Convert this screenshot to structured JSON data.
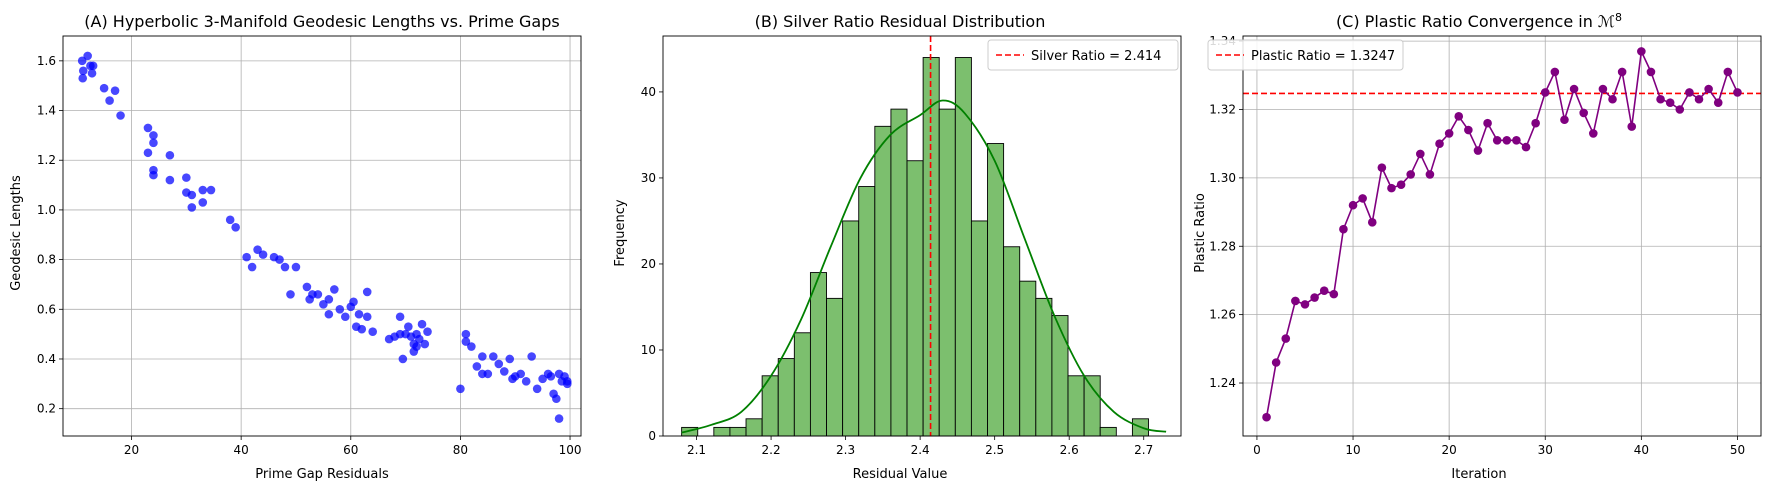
{
  "chart_data": [
    {
      "type": "scatter",
      "title": "(A) Hyperbolic 3-Manifold Geodesic Lengths vs. Prime Gaps",
      "xlabel": "Prime Gap Residuals",
      "ylabel": "Geodesic Lengths",
      "xlim": [
        7.5,
        102
      ],
      "ylim": [
        0.09,
        1.7
      ],
      "xticks": [
        20,
        40,
        60,
        80,
        100
      ],
      "yticks": [
        0.2,
        0.4,
        0.6,
        0.8,
        1.0,
        1.2,
        1.4,
        1.6
      ],
      "grid": true,
      "color": "#0000ff",
      "points": [
        [
          11,
          1.6
        ],
        [
          11.2,
          1.56
        ],
        [
          11.1,
          1.53
        ],
        [
          12,
          1.62
        ],
        [
          12.5,
          1.58
        ],
        [
          12.8,
          1.55
        ],
        [
          13,
          1.58
        ],
        [
          15,
          1.49
        ],
        [
          16,
          1.44
        ],
        [
          17,
          1.48
        ],
        [
          18,
          1.38
        ],
        [
          23,
          1.33
        ],
        [
          23,
          1.23
        ],
        [
          24,
          1.3
        ],
        [
          24,
          1.27
        ],
        [
          24,
          1.16
        ],
        [
          24,
          1.14
        ],
        [
          27,
          1.22
        ],
        [
          27,
          1.12
        ],
        [
          30,
          1.13
        ],
        [
          30,
          1.07
        ],
        [
          31,
          1.06
        ],
        [
          31,
          1.01
        ],
        [
          33,
          1.08
        ],
        [
          33,
          1.03
        ],
        [
          34.5,
          1.08
        ],
        [
          38,
          0.96
        ],
        [
          39,
          0.93
        ],
        [
          41,
          0.81
        ],
        [
          42,
          0.77
        ],
        [
          43,
          0.84
        ],
        [
          44,
          0.82
        ],
        [
          46,
          0.81
        ],
        [
          47,
          0.8
        ],
        [
          48,
          0.77
        ],
        [
          49,
          0.66
        ],
        [
          50,
          0.77
        ],
        [
          52,
          0.69
        ],
        [
          52.5,
          0.64
        ],
        [
          53,
          0.66
        ],
        [
          54,
          0.66
        ],
        [
          55,
          0.62
        ],
        [
          56,
          0.58
        ],
        [
          56,
          0.64
        ],
        [
          57,
          0.68
        ],
        [
          58,
          0.6
        ],
        [
          59,
          0.57
        ],
        [
          60,
          0.61
        ],
        [
          60.5,
          0.63
        ],
        [
          61,
          0.53
        ],
        [
          61.5,
          0.58
        ],
        [
          62,
          0.52
        ],
        [
          63,
          0.67
        ],
        [
          63,
          0.57
        ],
        [
          64,
          0.51
        ],
        [
          67,
          0.48
        ],
        [
          68,
          0.49
        ],
        [
          69,
          0.5
        ],
        [
          69,
          0.57
        ],
        [
          69.5,
          0.4
        ],
        [
          70,
          0.5
        ],
        [
          70.5,
          0.53
        ],
        [
          71,
          0.49
        ],
        [
          71.5,
          0.43
        ],
        [
          71.5,
          0.46
        ],
        [
          72,
          0.5
        ],
        [
          72,
          0.45
        ],
        [
          72.5,
          0.48
        ],
        [
          73,
          0.54
        ],
        [
          73.5,
          0.46
        ],
        [
          74,
          0.51
        ],
        [
          80,
          0.28
        ],
        [
          81,
          0.5
        ],
        [
          81,
          0.47
        ],
        [
          82,
          0.45
        ],
        [
          83,
          0.37
        ],
        [
          84,
          0.34
        ],
        [
          85,
          0.34
        ],
        [
          84,
          0.41
        ],
        [
          86,
          0.41
        ],
        [
          87,
          0.38
        ],
        [
          88,
          0.35
        ],
        [
          89,
          0.4
        ],
        [
          89.5,
          0.32
        ],
        [
          90,
          0.33
        ],
        [
          91,
          0.34
        ],
        [
          92,
          0.31
        ],
        [
          93,
          0.41
        ],
        [
          94,
          0.28
        ],
        [
          95,
          0.32
        ],
        [
          96,
          0.34
        ],
        [
          96.5,
          0.33
        ],
        [
          97,
          0.26
        ],
        [
          97.5,
          0.24
        ],
        [
          98,
          0.16
        ],
        [
          98,
          0.34
        ],
        [
          98.5,
          0.31
        ],
        [
          99,
          0.33
        ],
        [
          99.5,
          0.3
        ],
        [
          99.5,
          0.31
        ]
      ]
    },
    {
      "type": "histogram",
      "title": "(B) Silver Ratio Residual Distribution",
      "xlabel": "Residual Value",
      "ylabel": "Frequency",
      "xlim": [
        2.055,
        2.75
      ],
      "ylim": [
        0,
        46.5
      ],
      "xticks": [
        2.1,
        2.2,
        2.3,
        2.4,
        2.5,
        2.6,
        2.7
      ],
      "yticks": [
        0,
        10,
        20,
        30,
        40
      ],
      "grid": false,
      "bin_start": 2.08,
      "bin_width": 0.0216,
      "counts": [
        1,
        0,
        1,
        1,
        2,
        7,
        9,
        12,
        19,
        16,
        25,
        29,
        36,
        38,
        32,
        44,
        38,
        44,
        25,
        34,
        22,
        18,
        16,
        14,
        7,
        7,
        1,
        0,
        2
      ],
      "bar_color": "#7cbf6e",
      "kde_color": "#008000",
      "kde": [
        [
          2.08,
          0.4
        ],
        [
          2.12,
          1.3
        ],
        [
          2.16,
          2.8
        ],
        [
          2.2,
          7.0
        ],
        [
          2.24,
          13.5
        ],
        [
          2.28,
          22.0
        ],
        [
          2.32,
          30.0
        ],
        [
          2.36,
          35.0
        ],
        [
          2.4,
          37.3
        ],
        [
          2.43,
          39.0
        ],
        [
          2.46,
          37.5
        ],
        [
          2.5,
          32.0
        ],
        [
          2.54,
          23.0
        ],
        [
          2.58,
          14.0
        ],
        [
          2.62,
          7.0
        ],
        [
          2.66,
          2.8
        ],
        [
          2.7,
          0.9
        ],
        [
          2.73,
          0.5
        ]
      ],
      "vline": {
        "x": 2.414,
        "color": "#ff0000",
        "label": "Silver Ratio = 2.414"
      },
      "legend": "top-right"
    },
    {
      "type": "line",
      "title": "(C) Plastic Ratio Convergence in ℳ",
      "title_superscript": "8",
      "xlabel": "Iteration",
      "ylabel": "Plastic Ratio",
      "xlim": [
        -1.45,
        52.45
      ],
      "ylim": [
        1.2245,
        1.3415
      ],
      "xticks": [
        0,
        10,
        20,
        30,
        40,
        50
      ],
      "yticks": [
        1.24,
        1.26,
        1.28,
        1.3,
        1.32,
        1.34
      ],
      "grid": true,
      "color": "#800080",
      "x": [
        1,
        2,
        3,
        4,
        5,
        6,
        7,
        8,
        9,
        10,
        11,
        12,
        13,
        14,
        15,
        16,
        17,
        18,
        19,
        20,
        21,
        22,
        23,
        24,
        25,
        26,
        27,
        28,
        29,
        30,
        31,
        32,
        33,
        34,
        35,
        36,
        37,
        38,
        39,
        40,
        41,
        42,
        43,
        44,
        45,
        46,
        47,
        48,
        49,
        50
      ],
      "y": [
        1.23,
        1.246,
        1.253,
        1.264,
        1.263,
        1.265,
        1.267,
        1.266,
        1.285,
        1.292,
        1.294,
        1.287,
        1.303,
        1.297,
        1.298,
        1.301,
        1.307,
        1.301,
        1.31,
        1.313,
        1.318,
        1.314,
        1.308,
        1.316,
        1.311,
        1.311,
        1.311,
        1.309,
        1.316,
        1.325,
        1.331,
        1.317,
        1.326,
        1.319,
        1.313,
        1.326,
        1.323,
        1.331,
        1.315,
        1.337,
        1.331,
        1.323,
        1.322,
        1.32,
        1.325,
        1.323,
        1.326,
        1.322,
        1.331,
        1.325
      ],
      "hline": {
        "y": 1.3247,
        "color": "#ff0000",
        "label": "Plastic Ratio = 1.3247"
      },
      "legend": "top-left"
    }
  ]
}
